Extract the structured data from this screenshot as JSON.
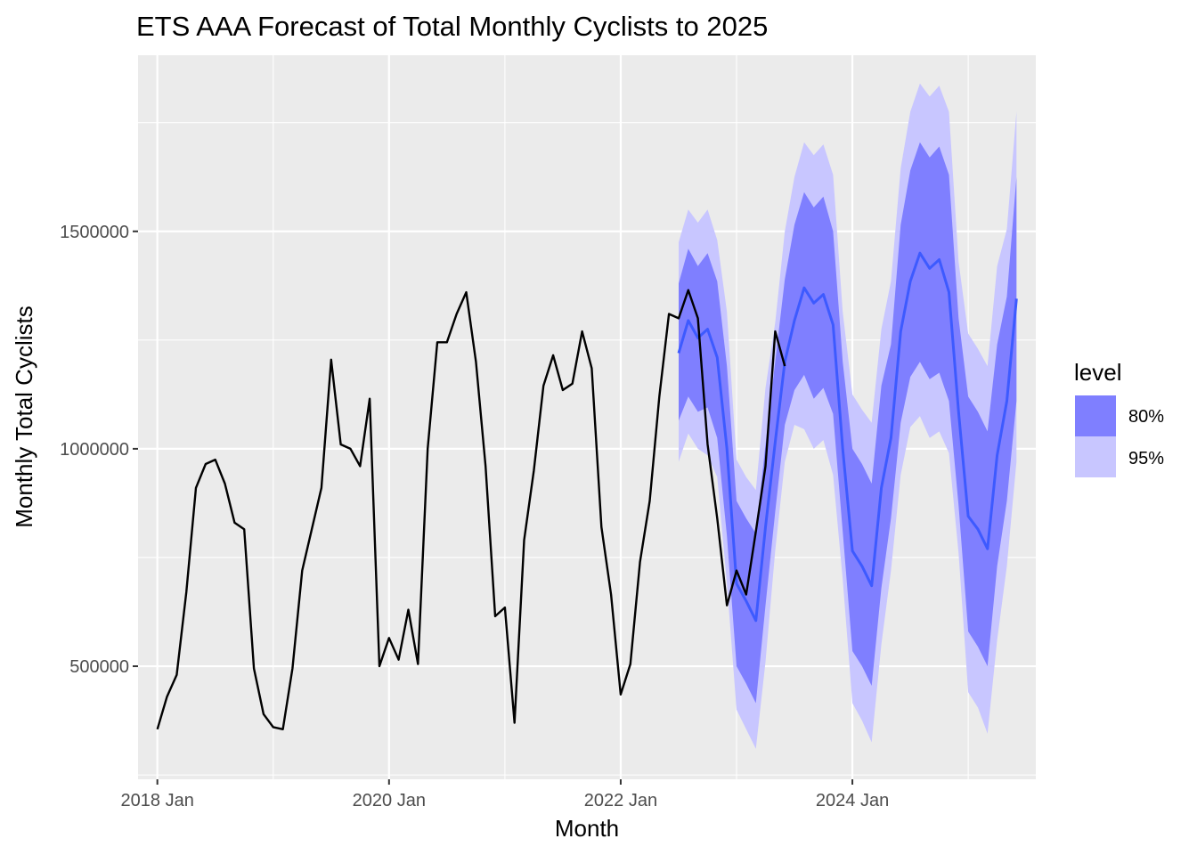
{
  "chart_data": {
    "type": "line",
    "title": "ETS AAA Forecast of Total Monthly Cyclists to 2025",
    "xlabel": "Month",
    "ylabel": "Monthly Total Cyclists",
    "x_ticks": [
      "2018 Jan",
      "2020 Jan",
      "2022 Jan",
      "2024 Jan"
    ],
    "y_ticks": [
      500000,
      1000000,
      1500000
    ],
    "y_tick_labels": [
      "500000",
      "1000000",
      "1500000"
    ],
    "xlim": [
      "2017-11",
      "2025-08"
    ],
    "ylim": [
      240000,
      1905000
    ],
    "grid": true,
    "legend": {
      "title": "level",
      "position": "right",
      "entries": [
        {
          "label": "80%",
          "color": "#7f7fff"
        },
        {
          "label": "95%",
          "color": "#c8c6ff"
        }
      ]
    },
    "colors": {
      "panel": "#ebebeb",
      "grid": "#ffffff",
      "observed": "#000000",
      "forecast": "#3d5aff",
      "band80": "#7f7fff",
      "band95": "#c8c6ff"
    },
    "observed": {
      "x": [
        "2018-01",
        "2018-02",
        "2018-03",
        "2018-04",
        "2018-05",
        "2018-06",
        "2018-07",
        "2018-08",
        "2018-09",
        "2018-10",
        "2018-11",
        "2018-12",
        "2019-01",
        "2019-02",
        "2019-03",
        "2019-04",
        "2019-05",
        "2019-06",
        "2019-07",
        "2019-08",
        "2019-09",
        "2019-10",
        "2019-11",
        "2019-12",
        "2020-01",
        "2020-02",
        "2020-03",
        "2020-04",
        "2020-05",
        "2020-06",
        "2020-07",
        "2020-08",
        "2020-09",
        "2020-10",
        "2020-11",
        "2020-12",
        "2021-01",
        "2021-02",
        "2021-03",
        "2021-04",
        "2021-05",
        "2021-06",
        "2021-07",
        "2021-08",
        "2021-09",
        "2021-10",
        "2021-11",
        "2021-12",
        "2022-01",
        "2022-02",
        "2022-03",
        "2022-04",
        "2022-05",
        "2022-06",
        "2022-07",
        "2022-08",
        "2022-09",
        "2022-10",
        "2022-11",
        "2022-12",
        "2023-01",
        "2023-02",
        "2023-03",
        "2023-04",
        "2023-05",
        "2023-06"
      ],
      "y": [
        355000,
        430000,
        480000,
        670000,
        910000,
        965000,
        975000,
        920000,
        830000,
        815000,
        495000,
        390000,
        360000,
        355000,
        495000,
        720000,
        815000,
        910000,
        1205000,
        1010000,
        1000000,
        960000,
        1115000,
        500000,
        565000,
        515000,
        630000,
        505000,
        1000000,
        1245000,
        1245000,
        1310000,
        1360000,
        1200000,
        960000,
        615000,
        635000,
        370000,
        790000,
        950000,
        1145000,
        1215000,
        1135000,
        1150000,
        1270000,
        1185000,
        820000,
        665000,
        435000,
        505000,
        740000,
        880000,
        1120000,
        1310000,
        1300000,
        1365000,
        1300000,
        1010000,
        840000,
        640000,
        720000,
        665000,
        810000,
        960000,
        1270000,
        1190000
      ]
    },
    "forecast": {
      "x": [
        "2022-07",
        "2022-08",
        "2022-09",
        "2022-10",
        "2022-11",
        "2022-12",
        "2023-01",
        "2023-02",
        "2023-03",
        "2023-04",
        "2023-05",
        "2023-06",
        "2023-07",
        "2023-08",
        "2023-09",
        "2023-10",
        "2023-11",
        "2023-12",
        "2024-01",
        "2024-02",
        "2024-03",
        "2024-04",
        "2024-05",
        "2024-06",
        "2024-07",
        "2024-08",
        "2024-09",
        "2024-10",
        "2024-11",
        "2024-12",
        "2025-01",
        "2025-02",
        "2025-03",
        "2025-04",
        "2025-05",
        "2025-06"
      ],
      "mean": [
        1220000,
        1295000,
        1255000,
        1275000,
        1210000,
        1000000,
        690000,
        650000,
        605000,
        820000,
        1015000,
        1200000,
        1295000,
        1370000,
        1335000,
        1355000,
        1285000,
        1000000,
        765000,
        730000,
        685000,
        910000,
        1025000,
        1270000,
        1385000,
        1450000,
        1415000,
        1435000,
        1360000,
        1085000,
        845000,
        815000,
        770000,
        985000,
        1110000,
        1345000
      ],
      "lo80": [
        1065000,
        1120000,
        1085000,
        1095000,
        1025000,
        800000,
        500000,
        460000,
        415000,
        640000,
        855000,
        1055000,
        1135000,
        1170000,
        1115000,
        1140000,
        1080000,
        810000,
        535000,
        500000,
        455000,
        680000,
        840000,
        1060000,
        1165000,
        1200000,
        1160000,
        1175000,
        1110000,
        870000,
        580000,
        545000,
        500000,
        730000,
        880000,
        1110000
      ],
      "hi80": [
        1380000,
        1460000,
        1420000,
        1450000,
        1385000,
        1190000,
        880000,
        840000,
        805000,
        1010000,
        1200000,
        1390000,
        1515000,
        1590000,
        1555000,
        1580000,
        1500000,
        1200000,
        1000000,
        965000,
        920000,
        1145000,
        1240000,
        1515000,
        1640000,
        1705000,
        1670000,
        1695000,
        1630000,
        1300000,
        1120000,
        1085000,
        1040000,
        1240000,
        1350000,
        1625000
      ],
      "lo95": [
        970000,
        1035000,
        1000000,
        985000,
        935000,
        690000,
        400000,
        355000,
        310000,
        510000,
        765000,
        970000,
        1055000,
        1045000,
        1000000,
        1020000,
        940000,
        700000,
        415000,
        375000,
        325000,
        550000,
        720000,
        940000,
        1050000,
        1075000,
        1025000,
        1040000,
        990000,
        760000,
        440000,
        405000,
        345000,
        560000,
        730000,
        970000
      ],
      "hi95": [
        1475000,
        1550000,
        1520000,
        1550000,
        1480000,
        1315000,
        975000,
        935000,
        905000,
        1140000,
        1290000,
        1500000,
        1625000,
        1705000,
        1675000,
        1700000,
        1630000,
        1315000,
        1125000,
        1090000,
        1060000,
        1275000,
        1385000,
        1645000,
        1775000,
        1840000,
        1810000,
        1835000,
        1775000,
        1430000,
        1265000,
        1230000,
        1190000,
        1420000,
        1505000,
        1775000
      ]
    }
  }
}
